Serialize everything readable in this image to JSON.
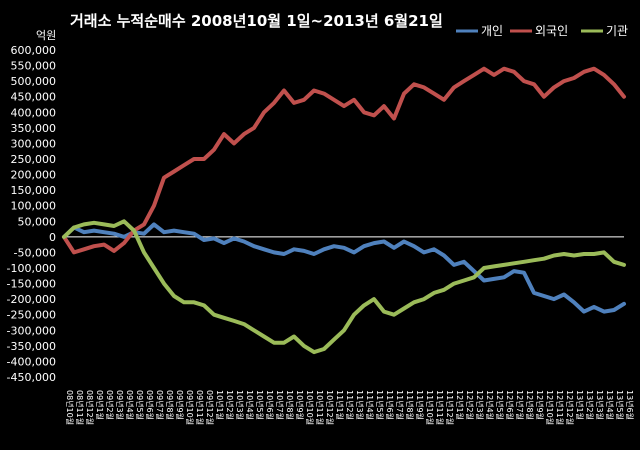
{
  "chart_data": {
    "type": "line",
    "title": "거래소 누적순매수 2008년10월 1일~2013년 6월21일",
    "unit_label": "억원",
    "ylim": [
      -450000,
      600000
    ],
    "yticks": [
      "600,000",
      "550,000",
      "500,000",
      "450,000",
      "400,000",
      "350,000",
      "300,000",
      "250,000",
      "200,000",
      "150,000",
      "100,000",
      "50,000",
      "0",
      "-50,000",
      "-100,000",
      "-150,000",
      "-200,000",
      "-250,000",
      "-300,000",
      "-350,000",
      "-400,000",
      "-450,000"
    ],
    "grid": false,
    "legend_position": "top-right",
    "x_start": "08년10월",
    "x_end": "13년6월",
    "x_tick_labels": [
      "08년10월",
      "08년11월",
      "08년12월",
      "09년1월",
      "09년2월",
      "09년3월",
      "09년4월",
      "09년5월",
      "09년6월",
      "09년7월",
      "09년8월",
      "09년9월",
      "09년10월",
      "09년11월",
      "09년12월",
      "10년1월",
      "10년2월",
      "10년3월",
      "10년4월",
      "10년5월",
      "10년6월",
      "10년7월",
      "10년8월",
      "10년9월",
      "10년10월",
      "10년11월",
      "10년12월",
      "11년1월",
      "11년2월",
      "11년3월",
      "11년4월",
      "11년5월",
      "11년6월",
      "11년7월",
      "11년8월",
      "11년9월",
      "11년10월",
      "11년11월",
      "11년12월",
      "12년1월",
      "12년2월",
      "12년3월",
      "12년4월",
      "12년5월",
      "12년6월",
      "12년7월",
      "12년8월",
      "12년9월",
      "12년10월",
      "12년11월",
      "12년12월",
      "13년1월",
      "13년2월",
      "13년3월",
      "13년4월",
      "13년5월",
      "13년6월"
    ],
    "series": [
      {
        "name": "개인",
        "color": "#4F81BD",
        "values": [
          0,
          30000,
          15000,
          20000,
          15000,
          10000,
          0,
          15000,
          10000,
          40000,
          15000,
          20000,
          15000,
          10000,
          -10000,
          -5000,
          -20000,
          -5000,
          -15000,
          -30000,
          -40000,
          -50000,
          -55000,
          -40000,
          -45000,
          -55000,
          -40000,
          -30000,
          -35000,
          -50000,
          -30000,
          -20000,
          -15000,
          -35000,
          -15000,
          -30000,
          -50000,
          -40000,
          -60000,
          -90000,
          -80000,
          -110000,
          -140000,
          -135000,
          -130000,
          -110000,
          -115000,
          -180000,
          -190000,
          -200000,
          -185000,
          -210000,
          -240000,
          -225000,
          -240000,
          -235000,
          -215000
        ]
      },
      {
        "name": "외국인",
        "color": "#C0504D",
        "values": [
          0,
          -50000,
          -40000,
          -30000,
          -25000,
          -45000,
          -20000,
          20000,
          40000,
          100000,
          190000,
          210000,
          230000,
          250000,
          250000,
          280000,
          330000,
          300000,
          330000,
          350000,
          400000,
          430000,
          470000,
          430000,
          440000,
          470000,
          460000,
          440000,
          420000,
          440000,
          400000,
          390000,
          420000,
          380000,
          460000,
          490000,
          480000,
          460000,
          440000,
          480000,
          500000,
          520000,
          540000,
          520000,
          540000,
          530000,
          500000,
          490000,
          450000,
          480000,
          500000,
          510000,
          530000,
          540000,
          520000,
          490000,
          450000
        ]
      },
      {
        "name": "기관",
        "color": "#9BBB59",
        "values": [
          0,
          30000,
          40000,
          45000,
          40000,
          35000,
          50000,
          20000,
          -50000,
          -100000,
          -150000,
          -190000,
          -210000,
          -210000,
          -220000,
          -250000,
          -260000,
          -270000,
          -280000,
          -300000,
          -320000,
          -340000,
          -340000,
          -320000,
          -350000,
          -370000,
          -360000,
          -330000,
          -300000,
          -250000,
          -220000,
          -200000,
          -240000,
          -250000,
          -230000,
          -210000,
          -200000,
          -180000,
          -170000,
          -150000,
          -140000,
          -130000,
          -100000,
          -95000,
          -90000,
          -85000,
          -80000,
          -75000,
          -70000,
          -60000,
          -55000,
          -60000,
          -55000,
          -55000,
          -50000,
          -80000,
          -90000
        ]
      }
    ]
  }
}
